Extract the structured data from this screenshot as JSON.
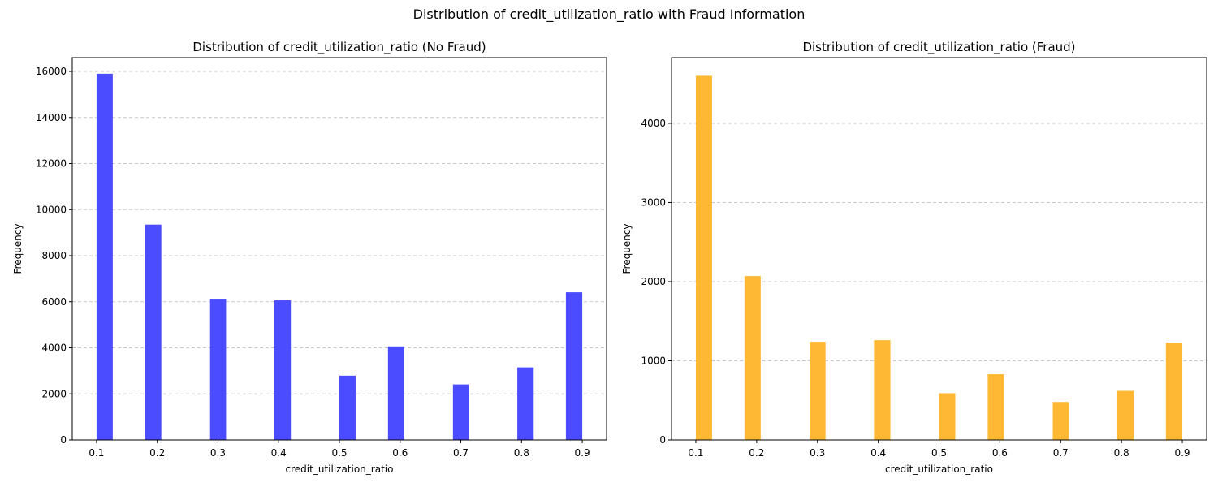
{
  "figure": {
    "suptitle": "Distribution of credit_utilization_ratio with Fraud Information"
  },
  "chart_data": [
    {
      "type": "bar",
      "title": "Distribution of credit_utilization_ratio (No Fraud)",
      "xlabel": "credit_utilization_ratio",
      "ylabel": "Frequency",
      "color": "#4b4bff",
      "grid": "y-dashed",
      "xlim": [
        0.06,
        0.94
      ],
      "ylim": [
        0,
        16600
      ],
      "xticks": [
        0.1,
        0.2,
        0.3,
        0.4,
        0.5,
        0.6,
        0.7,
        0.8,
        0.9
      ],
      "xtick_labels": [
        "0.1",
        "0.2",
        "0.3",
        "0.4",
        "0.5",
        "0.6",
        "0.7",
        "0.8",
        "0.9"
      ],
      "yticks": [
        0,
        2000,
        4000,
        6000,
        8000,
        10000,
        12000,
        14000,
        16000
      ],
      "ytick_labels": [
        "0",
        "2000",
        "4000",
        "6000",
        "8000",
        "10000",
        "12000",
        "14000",
        "16000"
      ],
      "bars": [
        {
          "x0": 0.1,
          "x1": 0.1267,
          "value": 15900
        },
        {
          "x0": 0.18,
          "x1": 0.2067,
          "value": 9350
        },
        {
          "x0": 0.287,
          "x1": 0.3133,
          "value": 6130
        },
        {
          "x0": 0.393,
          "x1": 0.42,
          "value": 6060
        },
        {
          "x0": 0.5,
          "x1": 0.5267,
          "value": 2790
        },
        {
          "x0": 0.58,
          "x1": 0.6067,
          "value": 4060
        },
        {
          "x0": 0.687,
          "x1": 0.7133,
          "value": 2410
        },
        {
          "x0": 0.793,
          "x1": 0.82,
          "value": 3150
        },
        {
          "x0": 0.873,
          "x1": 0.9,
          "value": 6410
        }
      ]
    },
    {
      "type": "bar",
      "title": "Distribution of credit_utilization_ratio (Fraud)",
      "xlabel": "credit_utilization_ratio",
      "ylabel": "Frequency",
      "color": "#ffb833",
      "grid": "y-dashed",
      "xlim": [
        0.06,
        0.94
      ],
      "ylim": [
        0,
        4830
      ],
      "xticks": [
        0.1,
        0.2,
        0.3,
        0.4,
        0.5,
        0.6,
        0.7,
        0.8,
        0.9
      ],
      "xtick_labels": [
        "0.1",
        "0.2",
        "0.3",
        "0.4",
        "0.5",
        "0.6",
        "0.7",
        "0.8",
        "0.9"
      ],
      "yticks": [
        0,
        1000,
        2000,
        3000,
        4000
      ],
      "ytick_labels": [
        "0",
        "1000",
        "2000",
        "3000",
        "4000"
      ],
      "bars": [
        {
          "x0": 0.1,
          "x1": 0.1267,
          "value": 4600
        },
        {
          "x0": 0.18,
          "x1": 0.2067,
          "value": 2070
        },
        {
          "x0": 0.287,
          "x1": 0.3133,
          "value": 1240
        },
        {
          "x0": 0.393,
          "x1": 0.42,
          "value": 1260
        },
        {
          "x0": 0.5,
          "x1": 0.5267,
          "value": 590
        },
        {
          "x0": 0.58,
          "x1": 0.6067,
          "value": 830
        },
        {
          "x0": 0.687,
          "x1": 0.7133,
          "value": 480
        },
        {
          "x0": 0.793,
          "x1": 0.82,
          "value": 620
        },
        {
          "x0": 0.873,
          "x1": 0.9,
          "value": 1230
        }
      ]
    }
  ]
}
